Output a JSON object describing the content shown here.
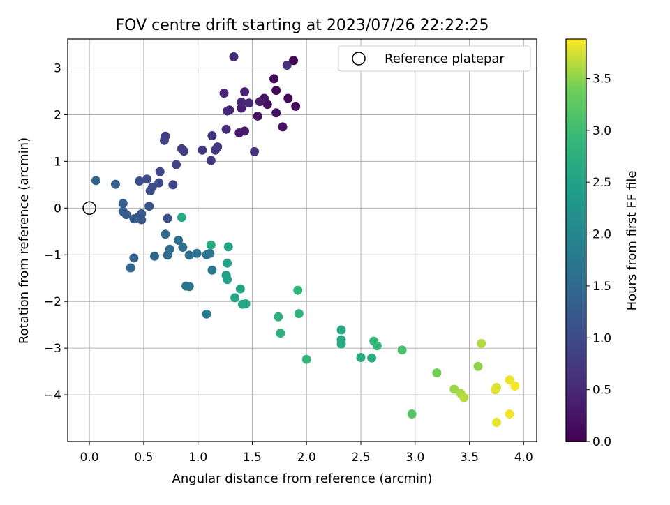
{
  "chart_data": {
    "type": "scatter",
    "title": "FOV centre drift starting at 2023/07/26 22:22:25",
    "xlabel": "Angular distance from reference (arcmin)",
    "ylabel": "Rotation from reference (arcmin)",
    "xlim": [
      -0.2,
      4.12
    ],
    "ylim": [
      -5.0,
      3.62
    ],
    "x_ticks": [
      0.0,
      0.5,
      1.0,
      1.5,
      2.0,
      2.5,
      3.0,
      3.5,
      4.0
    ],
    "x_tick_labels": [
      "0.0",
      "0.5",
      "1.0",
      "1.5",
      "2.0",
      "2.5",
      "3.0",
      "3.5",
      "4.0"
    ],
    "y_ticks": [
      -4,
      -3,
      -2,
      -1,
      0,
      1,
      2,
      3
    ],
    "y_tick_labels": [
      "−4",
      "−3",
      "−2",
      "−1",
      "0",
      "1",
      "2",
      "3"
    ],
    "grid": true,
    "legend": {
      "position": "top-right",
      "label": "Reference platepar"
    },
    "reference_point": {
      "x": 0.0,
      "y": 0.0
    },
    "colorbar": {
      "label": "Hours from first FF file",
      "colormap": "viridis",
      "range": [
        0.0,
        3.88
      ],
      "ticks": [
        0.0,
        0.5,
        1.0,
        1.5,
        2.0,
        2.5,
        3.0,
        3.5
      ],
      "tick_labels": [
        "0.0",
        "0.5",
        "1.0",
        "1.5",
        "2.0",
        "2.5",
        "3.0",
        "3.5"
      ]
    },
    "points": [
      {
        "x": 1.88,
        "y": 3.16,
        "t": 0.02
      },
      {
        "x": 1.7,
        "y": 2.77,
        "t": 0.05
      },
      {
        "x": 1.72,
        "y": 2.52,
        "t": 0.08
      },
      {
        "x": 1.83,
        "y": 2.35,
        "t": 0.1
      },
      {
        "x": 1.9,
        "y": 2.18,
        "t": 0.12
      },
      {
        "x": 1.64,
        "y": 2.22,
        "t": 0.15
      },
      {
        "x": 1.72,
        "y": 2.04,
        "t": 0.18
      },
      {
        "x": 1.78,
        "y": 1.74,
        "t": 0.2
      },
      {
        "x": 1.61,
        "y": 2.35,
        "t": 0.23
      },
      {
        "x": 1.55,
        "y": 1.97,
        "t": 0.26
      },
      {
        "x": 1.43,
        "y": 1.65,
        "t": 0.28
      },
      {
        "x": 1.38,
        "y": 1.61,
        "t": 0.31
      },
      {
        "x": 1.57,
        "y": 2.28,
        "t": 0.33
      },
      {
        "x": 1.4,
        "y": 2.14,
        "t": 0.36
      },
      {
        "x": 1.43,
        "y": 2.49,
        "t": 0.39
      },
      {
        "x": 1.29,
        "y": 2.1,
        "t": 0.41
      },
      {
        "x": 1.24,
        "y": 2.46,
        "t": 0.44
      },
      {
        "x": 1.4,
        "y": 2.27,
        "t": 0.47
      },
      {
        "x": 1.47,
        "y": 2.25,
        "t": 0.49
      },
      {
        "x": 1.27,
        "y": 2.08,
        "t": 0.52
      },
      {
        "x": 1.26,
        "y": 1.69,
        "t": 0.55
      },
      {
        "x": 1.33,
        "y": 3.24,
        "t": 0.57
      },
      {
        "x": 1.82,
        "y": 3.06,
        "t": 0.6
      },
      {
        "x": 1.52,
        "y": 1.21,
        "t": 0.63
      },
      {
        "x": 1.13,
        "y": 1.55,
        "t": 0.65
      },
      {
        "x": 1.18,
        "y": 1.31,
        "t": 0.68
      },
      {
        "x": 1.16,
        "y": 1.24,
        "t": 0.71
      },
      {
        "x": 1.04,
        "y": 1.24,
        "t": 0.73
      },
      {
        "x": 1.12,
        "y": 1.02,
        "t": 0.76
      },
      {
        "x": 0.87,
        "y": 1.22,
        "t": 0.78
      },
      {
        "x": 0.85,
        "y": 1.27,
        "t": 0.81
      },
      {
        "x": 0.7,
        "y": 1.54,
        "t": 0.84
      },
      {
        "x": 0.69,
        "y": 1.45,
        "t": 0.86
      },
      {
        "x": 0.8,
        "y": 0.93,
        "t": 0.89
      },
      {
        "x": 0.65,
        "y": 0.78,
        "t": 0.92
      },
      {
        "x": 0.77,
        "y": 0.5,
        "t": 0.94
      },
      {
        "x": 0.64,
        "y": 0.54,
        "t": 0.97
      },
      {
        "x": 0.53,
        "y": 0.62,
        "t": 1.0
      },
      {
        "x": 0.58,
        "y": 0.45,
        "t": 1.02
      },
      {
        "x": 0.56,
        "y": 0.37,
        "t": 1.05
      },
      {
        "x": 0.46,
        "y": 0.58,
        "t": 1.08
      },
      {
        "x": 0.72,
        "y": -0.22,
        "t": 1.1
      },
      {
        "x": 0.55,
        "y": 0.04,
        "t": 1.13
      },
      {
        "x": 0.48,
        "y": -0.12,
        "t": 1.16
      },
      {
        "x": 0.48,
        "y": -0.25,
        "t": 1.18
      },
      {
        "x": 0.45,
        "y": -0.19,
        "t": 1.21
      },
      {
        "x": 0.41,
        "y": -0.23,
        "t": 1.24
      },
      {
        "x": 0.34,
        "y": -0.14,
        "t": 1.26
      },
      {
        "x": 0.31,
        "y": -0.07,
        "t": 1.29
      },
      {
        "x": 0.31,
        "y": 0.1,
        "t": 1.32
      },
      {
        "x": 0.24,
        "y": 0.51,
        "t": 1.34
      },
      {
        "x": 0.06,
        "y": 0.59,
        "t": 1.37
      },
      {
        "x": 0.41,
        "y": -1.07,
        "t": 1.4
      },
      {
        "x": 0.38,
        "y": -1.28,
        "t": 1.42
      },
      {
        "x": 0.6,
        "y": -1.03,
        "t": 1.45
      },
      {
        "x": 0.72,
        "y": -1.01,
        "t": 1.48
      },
      {
        "x": 0.7,
        "y": -0.56,
        "t": 1.5
      },
      {
        "x": 0.74,
        "y": -0.88,
        "t": 1.53
      },
      {
        "x": 0.82,
        "y": -0.69,
        "t": 1.56
      },
      {
        "x": 0.86,
        "y": -0.84,
        "t": 1.58
      },
      {
        "x": 0.92,
        "y": -1.01,
        "t": 1.61
      },
      {
        "x": 0.99,
        "y": -0.97,
        "t": 1.64
      },
      {
        "x": 0.89,
        "y": -1.67,
        "t": 1.66
      },
      {
        "x": 0.92,
        "y": -1.68,
        "t": 1.69
      },
      {
        "x": 1.08,
        "y": -1.0,
        "t": 1.72
      },
      {
        "x": 1.11,
        "y": -0.97,
        "t": 1.74
      },
      {
        "x": 1.13,
        "y": -1.33,
        "t": 1.77
      },
      {
        "x": 1.08,
        "y": -2.27,
        "t": 1.8
      },
      {
        "x": 0.85,
        "y": -0.2,
        "t": 2.6
      },
      {
        "x": 1.12,
        "y": -0.79,
        "t": 2.62
      },
      {
        "x": 1.28,
        "y": -0.83,
        "t": 2.5
      },
      {
        "x": 1.27,
        "y": -1.18,
        "t": 2.52
      },
      {
        "x": 1.26,
        "y": -1.44,
        "t": 2.45
      },
      {
        "x": 1.27,
        "y": -1.53,
        "t": 2.48
      },
      {
        "x": 1.34,
        "y": -1.92,
        "t": 2.58
      },
      {
        "x": 1.39,
        "y": -1.73,
        "t": 2.55
      },
      {
        "x": 1.41,
        "y": -2.06,
        "t": 2.57
      },
      {
        "x": 1.44,
        "y": -2.05,
        "t": 2.59
      },
      {
        "x": 1.74,
        "y": -2.33,
        "t": 2.8
      },
      {
        "x": 1.76,
        "y": -2.68,
        "t": 2.78
      },
      {
        "x": 1.92,
        "y": -1.76,
        "t": 2.85
      },
      {
        "x": 1.93,
        "y": -2.26,
        "t": 2.82
      },
      {
        "x": 2.0,
        "y": -3.24,
        "t": 2.88
      },
      {
        "x": 2.32,
        "y": -2.61,
        "t": 2.62
      },
      {
        "x": 2.32,
        "y": -2.82,
        "t": 2.64
      },
      {
        "x": 2.32,
        "y": -2.91,
        "t": 2.66
      },
      {
        "x": 2.5,
        "y": -3.2,
        "t": 2.68
      },
      {
        "x": 2.6,
        "y": -3.21,
        "t": 2.7
      },
      {
        "x": 2.62,
        "y": -2.85,
        "t": 2.9
      },
      {
        "x": 2.65,
        "y": -2.95,
        "t": 2.92
      },
      {
        "x": 2.88,
        "y": -3.04,
        "t": 3.1
      },
      {
        "x": 2.97,
        "y": -4.41,
        "t": 3.2
      },
      {
        "x": 3.2,
        "y": -3.53,
        "t": 3.4
      },
      {
        "x": 3.36,
        "y": -3.88,
        "t": 3.55
      },
      {
        "x": 3.42,
        "y": -3.97,
        "t": 3.6
      },
      {
        "x": 3.45,
        "y": -4.06,
        "t": 3.65
      },
      {
        "x": 3.58,
        "y": -3.39,
        "t": 3.5
      },
      {
        "x": 3.61,
        "y": -2.9,
        "t": 3.62
      },
      {
        "x": 3.75,
        "y": -3.84,
        "t": 3.75
      },
      {
        "x": 3.74,
        "y": -3.89,
        "t": 3.78
      },
      {
        "x": 3.75,
        "y": -4.59,
        "t": 3.8
      },
      {
        "x": 3.87,
        "y": -3.68,
        "t": 3.82
      },
      {
        "x": 3.87,
        "y": -4.41,
        "t": 3.85
      },
      {
        "x": 3.92,
        "y": -3.81,
        "t": 3.86
      }
    ]
  }
}
